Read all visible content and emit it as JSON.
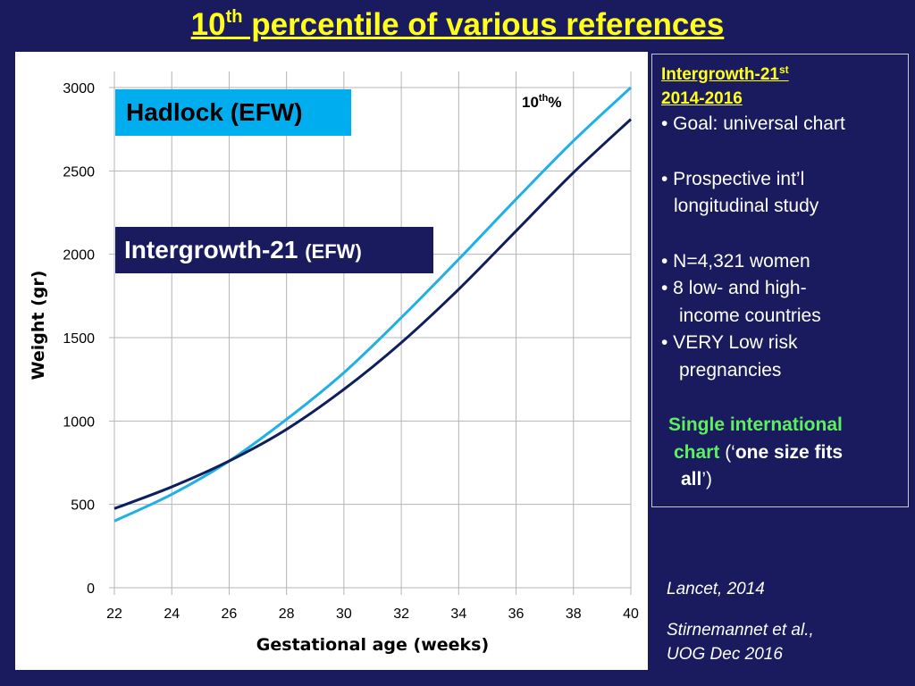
{
  "title": {
    "main": "10",
    "sup": "th",
    "rest": " percentile of various references"
  },
  "chart_data": {
    "type": "line",
    "xlabel": "Gestational age (weeks)",
    "ylabel": "Weight (gr)",
    "xlim": [
      22,
      40
    ],
    "ylim": [
      0,
      3000
    ],
    "xticks": [
      "22",
      "24",
      "26",
      "28",
      "30",
      "32",
      "34",
      "36",
      "38",
      "40"
    ],
    "yticks": [
      "0",
      "500",
      "1000",
      "1500",
      "2000",
      "2500",
      "3000"
    ],
    "grid": true,
    "x": [
      22,
      24,
      26,
      28,
      30,
      32,
      34,
      36,
      38,
      40
    ],
    "series": [
      {
        "name": "Hadlock (EFW)",
        "color": "#1eb0e6",
        "values": [
          400,
          560,
          760,
          1010,
          1290,
          1620,
          1970,
          2330,
          2680,
          3000
        ]
      },
      {
        "name": "Intergrowth-21 (EFW)",
        "color": "#0d1f5c",
        "values": [
          475,
          605,
          760,
          950,
          1190,
          1470,
          1790,
          2140,
          2490,
          2810
        ]
      }
    ],
    "legend": {
      "hadlock": "Hadlock (EFW)",
      "ig_main": "Intergrowth-21 ",
      "ig_small": "(EFW)"
    },
    "annotation": {
      "main": "10",
      "sup": "th",
      "rest": "%"
    }
  },
  "info": {
    "heading_main": "Intergrowth-21",
    "heading_sup": "st",
    "years": "2014-2016",
    "goal": "• Goal: universal chart",
    "study1": "• Prospective int’l",
    "study2": "longitudinal study",
    "n": "• N=4,321 women",
    "countries1": "• 8 low- and high-",
    "countries2": "income countries",
    "risk1": "• VERY Low risk",
    "risk2": "pregnancies",
    "single1": "Single international",
    "single2": "chart",
    "quote_open": " (‘",
    "one_size": "one size fits",
    "all": "all",
    "quote_close": "’)"
  },
  "references": {
    "lancet": "Lancet, 2014",
    "stirn1": "Stirnemannet et al.,",
    "stirn2": "UOG Dec 2016"
  }
}
